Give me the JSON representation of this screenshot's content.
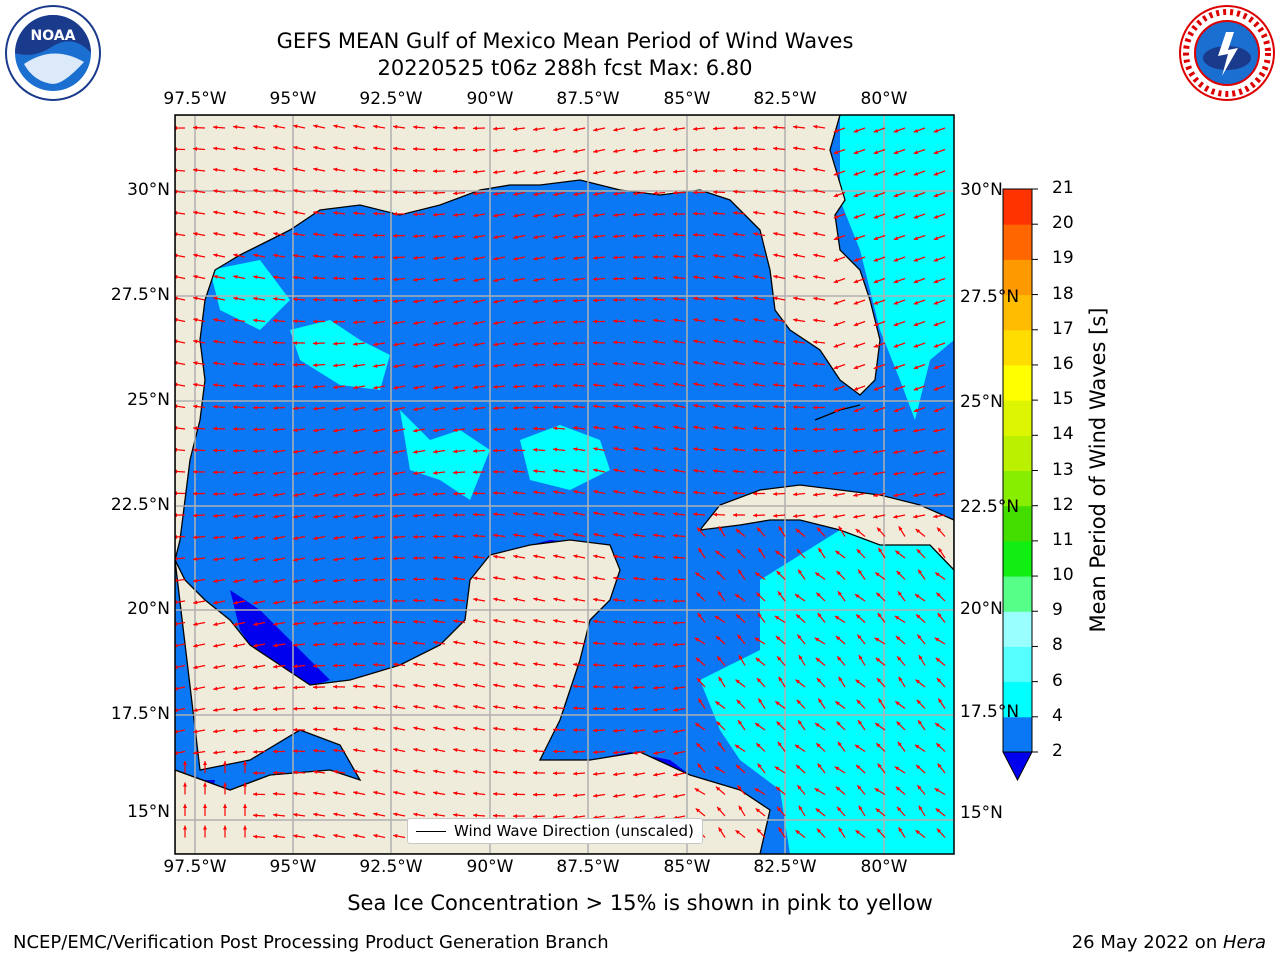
{
  "header": {
    "title_line1": "GEFS MEAN Gulf of Mexico Mean Period of Wind Waves",
    "title_line2": "20220525 t06z 288h fcst   Max: 6.80"
  },
  "logos": {
    "left": {
      "icon": "noaa-logo-icon",
      "text": "NOAA"
    },
    "right": {
      "icon": "nws-logo-icon",
      "text": "NATIONAL WEATHER SERVICE"
    }
  },
  "map": {
    "lon_labels": [
      "97.5°W",
      "95°W",
      "92.5°W",
      "90°W",
      "87.5°W",
      "85°W",
      "82.5°W",
      "80°W"
    ],
    "lat_labels": [
      "30°N",
      "27.5°N",
      "25°N",
      "22.5°N",
      "20°N",
      "17.5°N",
      "15°N"
    ],
    "legend_label": "Wind Wave Direction (unscaled)",
    "colors": {
      "land": "#efecdc",
      "ocean_period_2_4": "#0a78f5",
      "ocean_period_4_6": "#00ffff",
      "ocean_lt_2": "#0000ee",
      "arrow": "#ff0000",
      "grid": "#b0b0b0"
    }
  },
  "colorbar": {
    "label": "Mean Period of Wind Waves [s]",
    "ticks": [
      "2",
      "4",
      "6",
      "8",
      "9",
      "10",
      "11",
      "12",
      "13",
      "14",
      "15",
      "16",
      "17",
      "18",
      "19",
      "20",
      "21"
    ],
    "colors": [
      "#0a78f5",
      "#00ffff",
      "#55ffff",
      "#99ffff",
      "#55ff88",
      "#11ee11",
      "#44dd00",
      "#88ee00",
      "#bbf000",
      "#ddf500",
      "#ffff00",
      "#ffdd00",
      "#ffbb00",
      "#ff9900",
      "#ff6600",
      "#ff3300",
      "#ff0000"
    ],
    "underflow_color": "#0000ee"
  },
  "footer": {
    "note": "Sea Ice Concentration > 15% is shown in pink to yellow",
    "left": "NCEP/EMC/Verification Post Processing Product Generation Branch",
    "right_date": "26 May 2022 on ",
    "right_host": "Hera"
  }
}
